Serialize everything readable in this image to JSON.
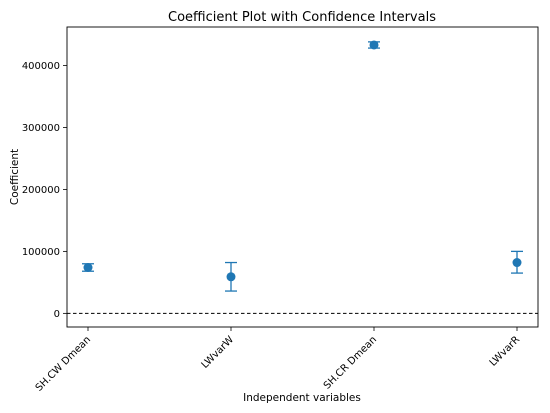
{
  "chart_data": {
    "type": "scatter",
    "title": "Coefficient Plot with Confidence Intervals",
    "xlabel": "Independent variables",
    "ylabel": "Coefficient",
    "categories": [
      "SH.CW Dmean",
      "LWvarW",
      "SH.CR Dmean",
      "LWvarR"
    ],
    "series": [
      {
        "values": [
          74000,
          59000,
          433000,
          82000
        ],
        "ci_lower": [
          68000,
          36000,
          428000,
          65000
        ],
        "ci_upper": [
          80000,
          82000,
          438000,
          100000
        ],
        "color": "#1f77b4"
      }
    ],
    "yticks": [
      0,
      100000,
      200000,
      300000,
      400000
    ],
    "ytick_labels": [
      "0",
      "100000",
      "200000",
      "300000",
      "400000"
    ],
    "ylim": [
      -22000,
      462000
    ],
    "reference_line": {
      "y": 0,
      "style": "dashed",
      "color": "#000000"
    },
    "grid": false,
    "legend": "none"
  }
}
